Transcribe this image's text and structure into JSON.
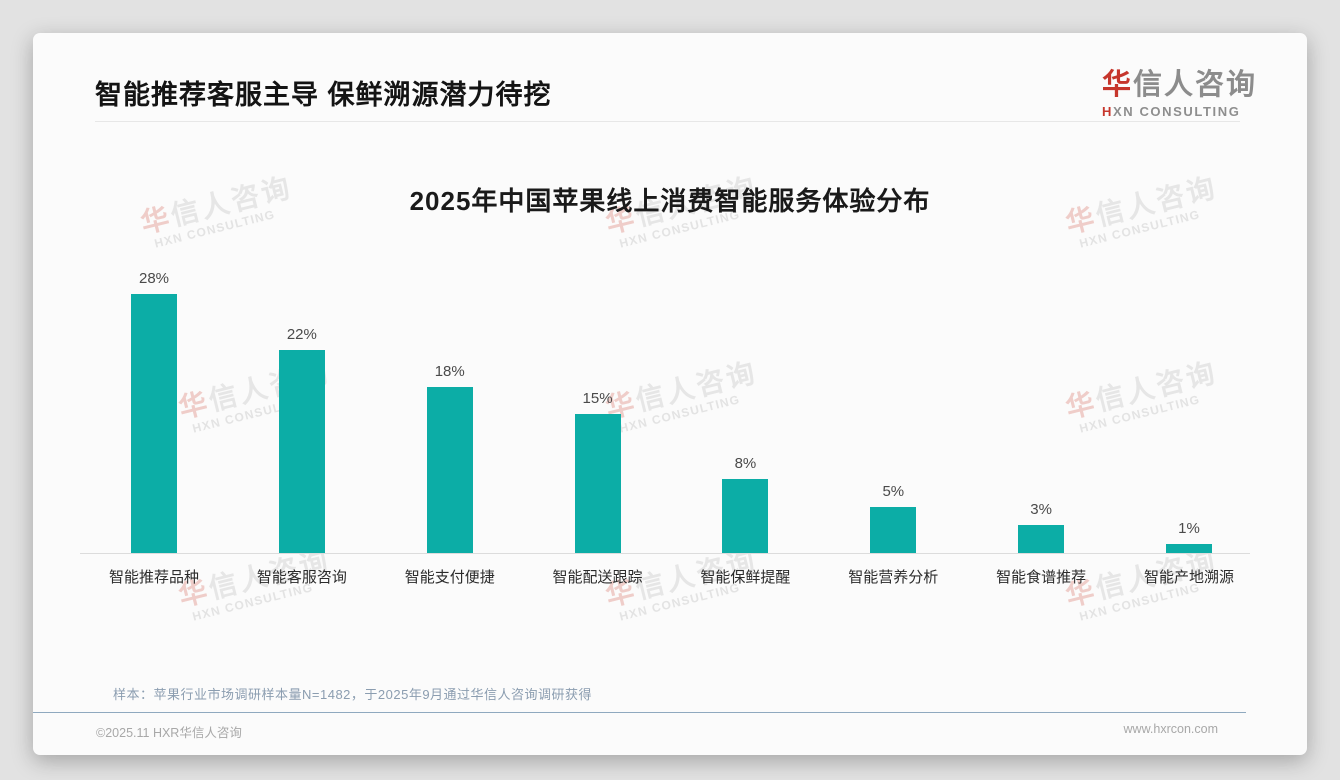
{
  "header": {
    "title": "智能推荐客服主导 保鲜溯源潜力待挖"
  },
  "logo": {
    "cn_first": "华",
    "cn_rest": "信人咨询",
    "en_first": "H",
    "en_rest": "XN CONSULTING",
    "accent_color": "#c6362c"
  },
  "watermark": {
    "cn_first": "华",
    "cn_rest": "信人咨询",
    "en": "HXN CONSULTING"
  },
  "chart_data": {
    "type": "bar",
    "title": "2025年中国苹果线上消费智能服务体验分布",
    "categories": [
      "智能推荐品种",
      "智能客服咨询",
      "智能支付便捷",
      "智能配送跟踪",
      "智能保鲜提醒",
      "智能营养分析",
      "智能食谱推荐",
      "智能产地溯源"
    ],
    "values": [
      28,
      22,
      18,
      15,
      8,
      5,
      3,
      1
    ],
    "data_labels": [
      "28%",
      "22%",
      "18%",
      "15%",
      "8%",
      "5%",
      "3%",
      "1%"
    ],
    "unit": "%",
    "bar_color": "#0cada6",
    "ylim": [
      0,
      30
    ],
    "grid": false,
    "xlabel": "",
    "ylabel": ""
  },
  "notes": {
    "sample": "样本：苹果行业市场调研样本量N=1482，于2025年9月通过华信人咨询调研获得"
  },
  "footer": {
    "copyright": "©2025.11 HXR华信人咨询",
    "website": "www.hxrcon.com"
  }
}
